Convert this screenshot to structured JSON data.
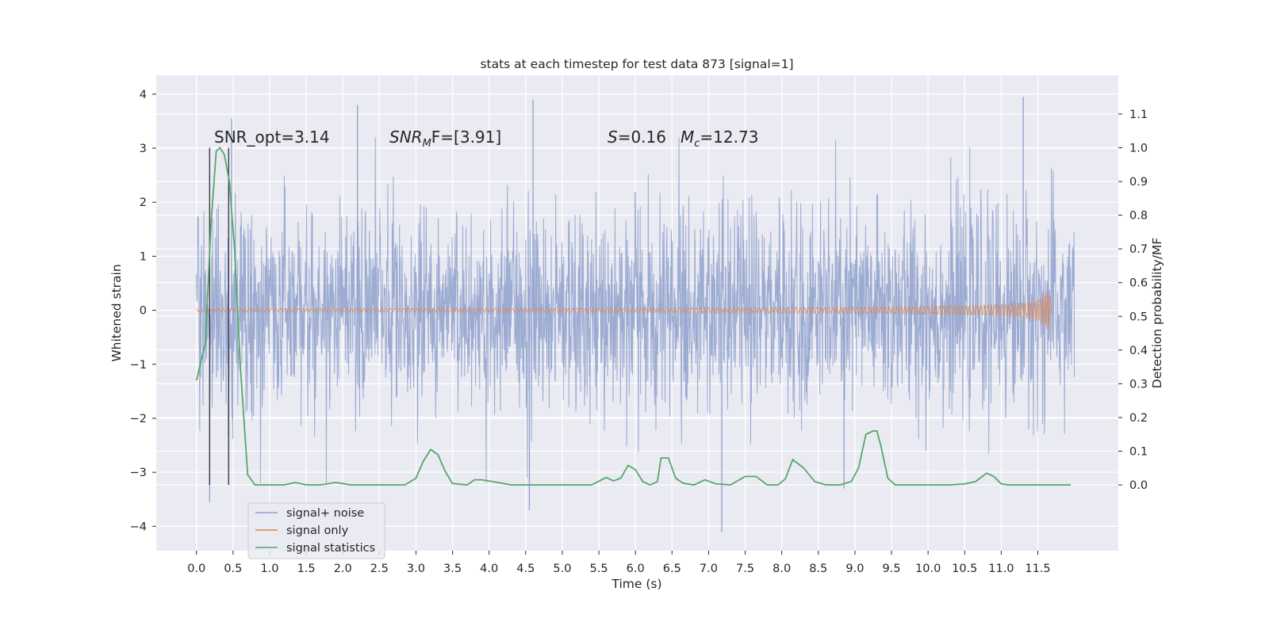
{
  "chart_data": {
    "type": "line",
    "title": "stats at each timestep for test data 873 [signal=1]",
    "xlabel": "Time (s)",
    "ylabel": "Whitened strain",
    "y2label": "Detection probability/MF",
    "xlim": [
      -0.55,
      12.6
    ],
    "ylim": [
      -4.45,
      4.35
    ],
    "y2lim": [
      -0.195,
      1.215
    ],
    "x_ticks": [
      0.0,
      0.5,
      1.0,
      1.5,
      2.0,
      2.5,
      3.0,
      3.5,
      4.0,
      4.5,
      5.0,
      5.5,
      6.0,
      6.5,
      7.0,
      7.5,
      8.0,
      8.5,
      9.0,
      9.5,
      10.0,
      10.5,
      11.0,
      11.5
    ],
    "x_tick_labels": [
      "0.0",
      "0.5",
      "1.0",
      "1.5",
      "2.0",
      "2.5",
      "3.0",
      "3.5",
      "4.0",
      "4.5",
      "5.0",
      "5.5",
      "6.0",
      "6.5",
      "7.0",
      "7.5",
      "8.0",
      "8.5",
      "9.0",
      "9.5",
      "10.0",
      "10.5",
      "11.0",
      "11.5"
    ],
    "y_ticks": [
      -4,
      -3,
      -2,
      -1,
      0,
      1,
      2,
      3,
      4
    ],
    "y_tick_labels": [
      "−4",
      "−3",
      "−2",
      "−1",
      "0",
      "1",
      "2",
      "3",
      "4"
    ],
    "y2_ticks": [
      0.0,
      0.1,
      0.2,
      0.3,
      0.4,
      0.5,
      0.6,
      0.7,
      0.8,
      0.9,
      1.0,
      1.1
    ],
    "y2_tick_labels": [
      "0.0",
      "0.1",
      "0.2",
      "0.3",
      "0.4",
      "0.5",
      "0.6",
      "0.7",
      "0.8",
      "0.9",
      "1.0",
      "1.1"
    ],
    "grid": true,
    "legend_position": "lower-left",
    "annotations": {
      "snr_opt": "SNR_opt=3.14",
      "snr_mf_base": "SNR",
      "snr_mf_sub": "M",
      "snr_mf_rest": "F=[3.91]",
      "s_sym": "S",
      "s_val": "=0.16",
      "mc_sym": "M",
      "mc_sub": "c",
      "mc_val": "=12.73"
    },
    "vlines": [
      0.18,
      0.44
    ],
    "series": [
      {
        "name": "signal+ noise",
        "color": "#8da0cb",
        "kind": "noise",
        "x_range": [
          0.0,
          12.0
        ],
        "amplitude_rms": 1.0,
        "envelope_typical": [
          -2.2,
          2.3
        ],
        "peaks_max": [
          [
            2.2,
            3.8
          ],
          [
            4.6,
            3.9
          ],
          [
            11.3,
            3.95
          ],
          [
            0.48,
            3.55
          ]
        ],
        "peaks_min": [
          [
            0.18,
            -3.55
          ],
          [
            4.55,
            -3.7
          ],
          [
            7.18,
            -4.1
          ],
          [
            8.85,
            -3.3
          ]
        ]
      },
      {
        "name": "signal only",
        "color": "#dd8452",
        "kind": "chirp",
        "x_range": [
          0.0,
          11.7
        ],
        "peak_time": 11.65,
        "peak_amplitude": 0.55,
        "min_amplitude": -0.55
      },
      {
        "name": "signal statistics",
        "color": "#55a868",
        "axis": "right",
        "x": [
          0.0,
          0.12,
          0.2,
          0.27,
          0.32,
          0.38,
          0.45,
          0.52,
          0.6,
          0.7,
          0.8,
          1.0,
          1.2,
          1.35,
          1.5,
          1.7,
          1.9,
          2.0,
          2.1,
          2.3,
          2.5,
          2.7,
          2.85,
          3.0,
          3.1,
          3.2,
          3.3,
          3.4,
          3.5,
          3.7,
          3.8,
          3.9,
          4.1,
          4.3,
          4.6,
          4.9,
          5.2,
          5.4,
          5.6,
          5.7,
          5.8,
          5.9,
          6.0,
          6.1,
          6.2,
          6.3,
          6.35,
          6.45,
          6.55,
          6.65,
          6.8,
          6.95,
          7.1,
          7.3,
          7.5,
          7.65,
          7.8,
          7.95,
          8.05,
          8.15,
          8.3,
          8.45,
          8.6,
          8.8,
          8.95,
          9.05,
          9.15,
          9.25,
          9.3,
          9.35,
          9.45,
          9.55,
          9.7,
          9.9,
          10.1,
          10.3,
          10.5,
          10.65,
          10.8,
          10.9,
          11.0,
          11.1,
          11.3,
          11.6,
          11.8,
          11.95
        ],
        "y": [
          0.31,
          0.42,
          0.78,
          0.99,
          1.0,
          0.98,
          0.9,
          0.7,
          0.35,
          0.03,
          0.0,
          0.0,
          0.0,
          0.007,
          0.0,
          0.0,
          0.007,
          0.004,
          0.0,
          0.0,
          0.0,
          0.0,
          0.0,
          0.02,
          0.07,
          0.105,
          0.09,
          0.04,
          0.004,
          0.0,
          0.015,
          0.015,
          0.008,
          0.0,
          0.0,
          0.0,
          0.0,
          0.0,
          0.022,
          0.012,
          0.02,
          0.058,
          0.045,
          0.01,
          0.0,
          0.01,
          0.08,
          0.08,
          0.02,
          0.005,
          0.0,
          0.015,
          0.003,
          0.0,
          0.025,
          0.025,
          0.0,
          0.0,
          0.018,
          0.075,
          0.05,
          0.01,
          0.0,
          0.0,
          0.01,
          0.05,
          0.15,
          0.16,
          0.16,
          0.12,
          0.02,
          0.0,
          0.0,
          0.0,
          0.0,
          0.0,
          0.003,
          0.01,
          0.035,
          0.025,
          0.003,
          0.0,
          0.0,
          0.0,
          0.0,
          0.0
        ]
      }
    ]
  }
}
